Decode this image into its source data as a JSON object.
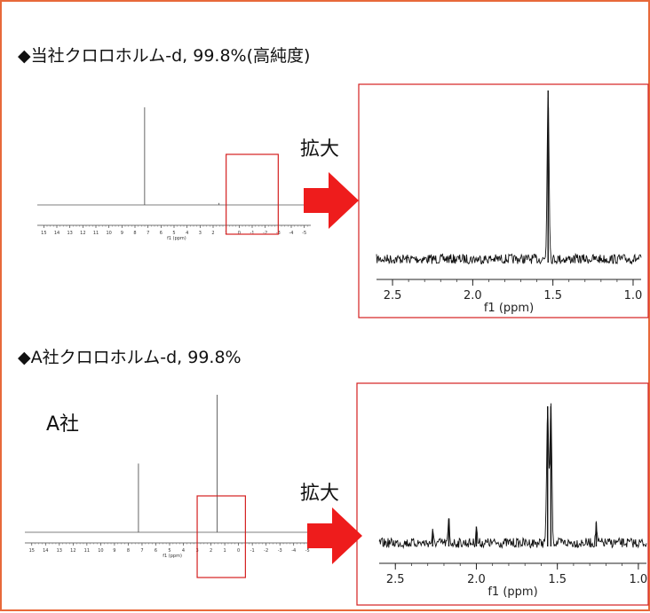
{
  "headings": {
    "top": "◆当社クロロホルム-d, 99.8%(高純度)",
    "bottom": "◆A社クロロホルム-d, 99.8%"
  },
  "labels": {
    "zoom_top": "拡大",
    "zoom_bottom": "拡大",
    "company": "A社"
  },
  "colors": {
    "frame": "#e8693a",
    "highlight": "#d42020",
    "arrow": "#ee1c1c",
    "trace": "#111111"
  },
  "chart_data": [
    {
      "type": "line",
      "id": "top-full",
      "xlabel": "f1 (ppm)",
      "xlim": [
        15.5,
        -5.5
      ],
      "x_reversed": true,
      "ticks": [
        "15",
        "14",
        "13",
        "12",
        "11",
        "10",
        "9",
        "8",
        "7",
        "6",
        "5",
        "4",
        "3",
        "2",
        "1",
        "0",
        "-1",
        "-2",
        "-3",
        "-4",
        "-5"
      ],
      "peaks": [
        {
          "x": 7.26,
          "height": 1.0
        },
        {
          "x": 1.55,
          "height": 0.02
        }
      ],
      "highlight_range": [
        1.0,
        -3.0
      ]
    },
    {
      "type": "line",
      "id": "top-zoom",
      "xlabel": "f1 (ppm)",
      "xlim": [
        2.6,
        0.95
      ],
      "x_reversed": true,
      "ticks": [
        "2.5",
        "2.0",
        "1.5",
        "1.0"
      ],
      "peaks": [
        {
          "x": 1.53,
          "height": 1.0
        }
      ],
      "noise": "baseline noise"
    },
    {
      "type": "line",
      "id": "bottom-full",
      "xlabel": "f1 (ppm)",
      "xlim": [
        15.5,
        -5.5
      ],
      "x_reversed": true,
      "ticks": [
        "15",
        "14",
        "13",
        "12",
        "11",
        "10",
        "9",
        "8",
        "7",
        "6",
        "5",
        "4",
        "3",
        "2",
        "1",
        "0",
        "-1",
        "-2",
        "-3",
        "-4",
        "-5"
      ],
      "peaks": [
        {
          "x": 7.26,
          "height": 0.5
        },
        {
          "x": 1.55,
          "height": 1.0
        }
      ],
      "highlight_range": [
        3.0,
        -0.5
      ]
    },
    {
      "type": "line",
      "id": "bottom-zoom",
      "xlabel": "f1 (ppm)",
      "xlim": [
        2.6,
        0.95
      ],
      "x_reversed": true,
      "ticks": [
        "2.5",
        "2.0",
        "1.5",
        "1.0"
      ],
      "peaks": [
        {
          "x": 1.56,
          "height": 1.0
        },
        {
          "x": 1.54,
          "height": 1.0
        },
        {
          "x": 2.17,
          "height": 0.18
        },
        {
          "x": 2.0,
          "height": 0.12
        },
        {
          "x": 2.27,
          "height": 0.08
        },
        {
          "x": 1.26,
          "height": 0.15
        }
      ],
      "noise": "baseline noise"
    }
  ]
}
